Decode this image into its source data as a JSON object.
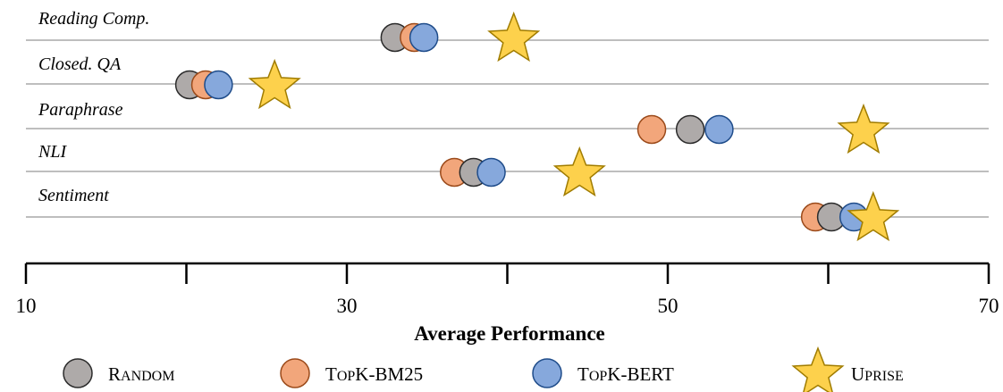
{
  "chart_data": {
    "type": "scatter",
    "title": "",
    "xlabel": "Average Performance",
    "ylabel": "",
    "xlim": [
      10,
      70
    ],
    "xticks": [
      "10",
      "30",
      "50",
      "70"
    ],
    "grid": true,
    "legend_position": "bottom",
    "categories": [
      "Reading Comp.",
      "Closed. QA",
      "Paraphrase",
      "NLI",
      "Sentiment"
    ],
    "series": [
      {
        "name_parts": [
          "R",
          "ANDOM"
        ],
        "marker": "circle",
        "color": "#aeaaa9",
        "stroke": "#2b2b2b",
        "values": [
          33.0,
          20.2,
          51.4,
          37.9,
          60.2
        ]
      },
      {
        "name_parts": [
          "T",
          "OP",
          "K-BM25"
        ],
        "marker": "circle",
        "color": "#f2a67b",
        "stroke": "#9b4a1a",
        "values": [
          34.2,
          21.2,
          49.0,
          36.7,
          59.2
        ]
      },
      {
        "name_parts": [
          "T",
          "OP",
          "K-BERT"
        ],
        "marker": "circle",
        "color": "#86a8dc",
        "stroke": "#1f4c8a",
        "values": [
          34.8,
          22.0,
          53.2,
          39.0,
          61.6
        ]
      },
      {
        "name_parts": [
          "U",
          "PRISE"
        ],
        "marker": "star",
        "color": "#fdd14c",
        "stroke": "#a07c00",
        "values": [
          40.4,
          25.5,
          62.2,
          44.5,
          62.8
        ]
      }
    ]
  }
}
